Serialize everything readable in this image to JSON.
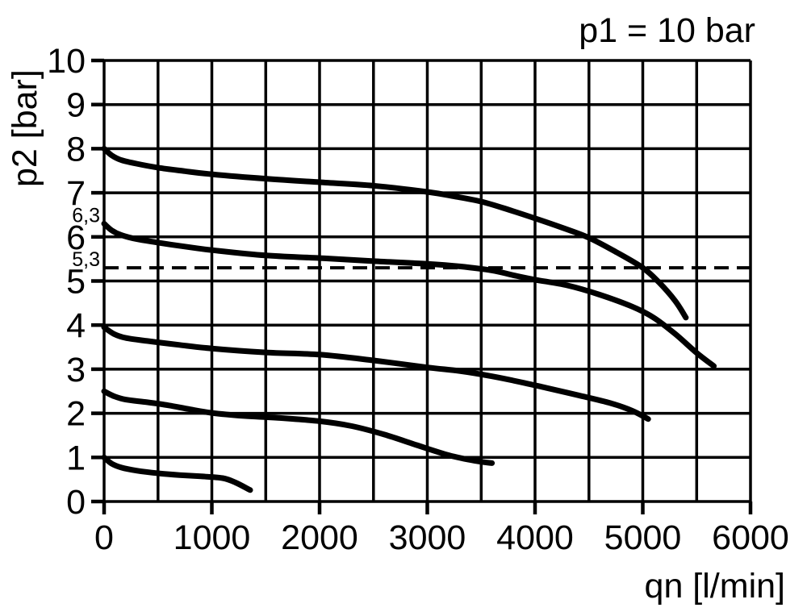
{
  "figure": {
    "kind": "pressure-regulator-flow-characteristic"
  },
  "colors": {
    "ink": "#000000",
    "background": "#ffffff"
  },
  "chart_data": {
    "type": "line",
    "title": "p1 = 10 bar",
    "xlabel": "qn [l/min]",
    "ylabel": "p2 [bar]",
    "xlim": [
      0,
      6000
    ],
    "ylim": [
      0,
      10
    ],
    "x_ticks": [
      0,
      1000,
      2000,
      3000,
      4000,
      5000,
      6000
    ],
    "y_ticks": [
      0,
      1,
      2,
      3,
      4,
      5,
      6,
      7,
      8,
      9,
      10
    ],
    "x_gridline_step": 500,
    "y_gridline_step": 1,
    "grid": true,
    "legend_position": "none",
    "special_y_labels": [
      {
        "value": 6.3,
        "label": "6,3"
      },
      {
        "value": 5.3,
        "label": "5,3"
      }
    ],
    "reference_line": {
      "y": 5.3,
      "style": "dashed"
    },
    "series": [
      {
        "name": "set-pressure-8-bar",
        "points": [
          [
            0,
            8.0
          ],
          [
            70,
            7.85
          ],
          [
            160,
            7.74
          ],
          [
            300,
            7.66
          ],
          [
            500,
            7.57
          ],
          [
            750,
            7.49
          ],
          [
            1000,
            7.42
          ],
          [
            1500,
            7.32
          ],
          [
            2000,
            7.24
          ],
          [
            2500,
            7.16
          ],
          [
            3000,
            7.02
          ],
          [
            3250,
            6.92
          ],
          [
            3500,
            6.8
          ],
          [
            3750,
            6.62
          ],
          [
            4000,
            6.42
          ],
          [
            4250,
            6.21
          ],
          [
            4500,
            5.98
          ],
          [
            4750,
            5.66
          ],
          [
            5000,
            5.3
          ],
          [
            5150,
            4.97
          ],
          [
            5300,
            4.55
          ],
          [
            5400,
            4.17
          ]
        ]
      },
      {
        "name": "set-pressure-6.3-bar",
        "points": [
          [
            0,
            6.3
          ],
          [
            70,
            6.15
          ],
          [
            160,
            6.04
          ],
          [
            300,
            5.95
          ],
          [
            500,
            5.87
          ],
          [
            750,
            5.78
          ],
          [
            1000,
            5.7
          ],
          [
            1500,
            5.58
          ],
          [
            2000,
            5.52
          ],
          [
            2500,
            5.45
          ],
          [
            3000,
            5.39
          ],
          [
            3300,
            5.33
          ],
          [
            3600,
            5.24
          ],
          [
            3800,
            5.13
          ],
          [
            4000,
            5.03
          ],
          [
            4300,
            4.9
          ],
          [
            4600,
            4.69
          ],
          [
            4900,
            4.42
          ],
          [
            5100,
            4.17
          ],
          [
            5300,
            3.8
          ],
          [
            5500,
            3.37
          ],
          [
            5660,
            3.07
          ]
        ]
      },
      {
        "name": "set-pressure-4-bar",
        "points": [
          [
            0,
            3.95
          ],
          [
            90,
            3.8
          ],
          [
            200,
            3.71
          ],
          [
            400,
            3.64
          ],
          [
            700,
            3.55
          ],
          [
            1000,
            3.47
          ],
          [
            1500,
            3.38
          ],
          [
            2000,
            3.33
          ],
          [
            2500,
            3.2
          ],
          [
            3000,
            3.04
          ],
          [
            3300,
            2.96
          ],
          [
            3600,
            2.84
          ],
          [
            3900,
            2.69
          ],
          [
            4100,
            2.58
          ],
          [
            4400,
            2.41
          ],
          [
            4700,
            2.23
          ],
          [
            4900,
            2.06
          ],
          [
            5050,
            1.87
          ]
        ]
      },
      {
        "name": "set-pressure-2.5-bar",
        "points": [
          [
            0,
            2.5
          ],
          [
            90,
            2.39
          ],
          [
            200,
            2.31
          ],
          [
            400,
            2.25
          ],
          [
            600,
            2.18
          ],
          [
            800,
            2.09
          ],
          [
            1000,
            2.01
          ],
          [
            1300,
            1.94
          ],
          [
            1600,
            1.9
          ],
          [
            2000,
            1.82
          ],
          [
            2300,
            1.71
          ],
          [
            2600,
            1.52
          ],
          [
            2900,
            1.28
          ],
          [
            3200,
            1.05
          ],
          [
            3450,
            0.92
          ],
          [
            3600,
            0.87
          ]
        ]
      },
      {
        "name": "set-pressure-1-bar",
        "points": [
          [
            0,
            1.0
          ],
          [
            70,
            0.86
          ],
          [
            160,
            0.77
          ],
          [
            300,
            0.7
          ],
          [
            500,
            0.64
          ],
          [
            700,
            0.6
          ],
          [
            900,
            0.57
          ],
          [
            1100,
            0.53
          ],
          [
            1220,
            0.43
          ],
          [
            1356,
            0.26
          ]
        ]
      }
    ]
  }
}
